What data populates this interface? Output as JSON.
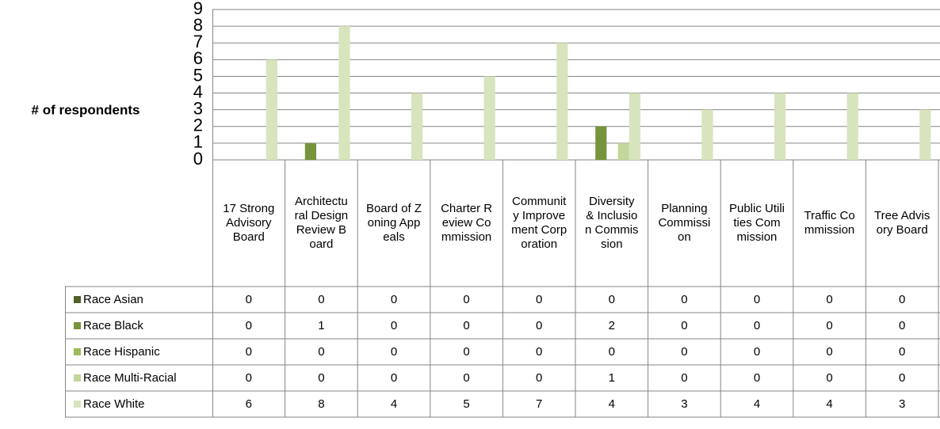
{
  "chart_data": {
    "type": "bar",
    "y_axis_label": "# of respondents",
    "categories": [
      "17 Strong Advisory Board",
      "Architectural Design Review Board",
      "Board of Zoning Appeals",
      "Charter Review Commission",
      "Community Improvement Corporation",
      "Diversity & Inclusion Commission",
      "Planning Commission",
      "Public Utilities Commission",
      "Traffic Commission",
      "Tree Advisory Board"
    ],
    "series": [
      {
        "name": "Race Asian",
        "color": "#4f6228",
        "values": [
          0,
          0,
          0,
          0,
          0,
          0,
          0,
          0,
          0,
          0
        ]
      },
      {
        "name": "Race Black",
        "color": "#77933c",
        "values": [
          0,
          1,
          0,
          0,
          0,
          2,
          0,
          0,
          0,
          0
        ]
      },
      {
        "name": "Race Hispanic",
        "color": "#9bbb59",
        "values": [
          0,
          0,
          0,
          0,
          0,
          0,
          0,
          0,
          0,
          0
        ]
      },
      {
        "name": "Race Multi-Racial",
        "color": "#c3d69b",
        "values": [
          0,
          0,
          0,
          0,
          0,
          1,
          0,
          0,
          0,
          0
        ]
      },
      {
        "name": "Race White",
        "color": "#d7e4bd",
        "values": [
          6,
          8,
          4,
          5,
          7,
          4,
          3,
          4,
          4,
          3
        ]
      }
    ],
    "ylim": [
      0,
      9
    ],
    "yticks": [
      0,
      1,
      2,
      3,
      4,
      5,
      6,
      7,
      8,
      9
    ],
    "grid": true
  }
}
